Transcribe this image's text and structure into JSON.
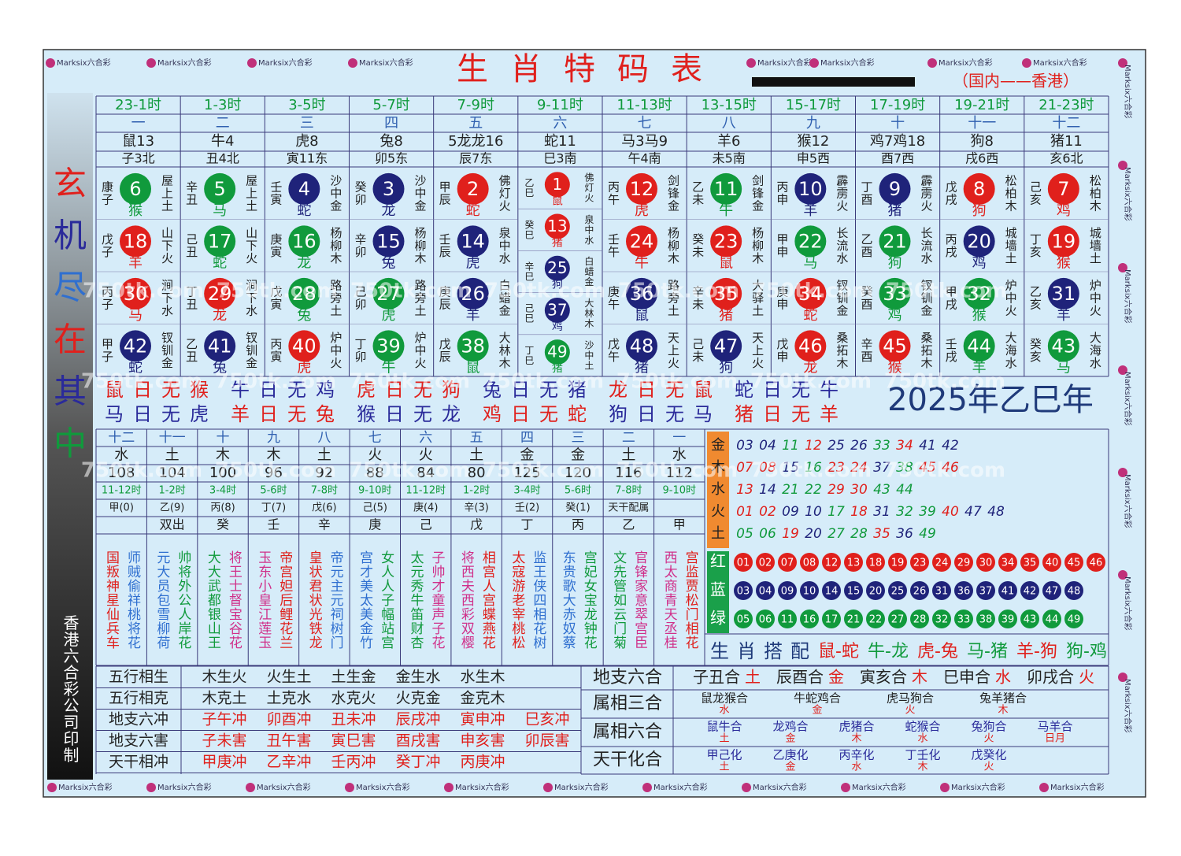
{
  "watermark": "Marksix六合彩",
  "watermark_site": "750tk.com",
  "title": "生肖特码表",
  "subtitle": "（国内——香港）",
  "side_title": [
    "玄",
    "机",
    "尽",
    "在",
    "其",
    "中"
  ],
  "side_note": "香港六合彩公司印制",
  "top_table": {
    "hours": [
      "23-1时",
      "1-3时",
      "3-5时",
      "5-7时",
      "7-9时",
      "9-11时",
      "11-13时",
      "13-15时",
      "15-17时",
      "17-19时",
      "19-21时",
      "21-23时"
    ],
    "numbers": [
      "一",
      "二",
      "三",
      "四",
      "五",
      "六",
      "七",
      "八",
      "九",
      "十",
      "十一",
      "十二"
    ],
    "zodiac": [
      "鼠13",
      "牛4",
      "虎8",
      "兔8",
      "5龙龙16",
      "蛇11",
      "马3马9",
      "羊6",
      "猴12",
      "鸡7鸡18",
      "狗8",
      "猪11"
    ],
    "branches": [
      "子3北",
      "丑4北",
      "寅11东",
      "卯5东",
      "辰7东",
      "巳3南",
      "午4南",
      "未5南",
      "申5西",
      "酉7西",
      "戌6西",
      "亥6北"
    ]
  },
  "balls": [
    [
      {
        "gz": "康子",
        "num": 6,
        "animal": "猴",
        "nayin": "屋上土"
      },
      {
        "gz": "戊子",
        "num": 18,
        "animal": "羊",
        "nayin": "山下火"
      },
      {
        "gz": "丙子",
        "num": 30,
        "animal": "马",
        "nayin": "涧下水"
      },
      {
        "gz": "甲子",
        "num": 42,
        "animal": "蛇",
        "nayin": "钗钏金"
      }
    ],
    [
      {
        "gz": "辛丑",
        "num": 5,
        "animal": "马",
        "nayin": "屋上土"
      },
      {
        "gz": "己丑",
        "num": 17,
        "animal": "蛇",
        "nayin": "山下火"
      },
      {
        "gz": "丁丑",
        "num": 29,
        "animal": "龙",
        "nayin": "涧下水"
      },
      {
        "gz": "乙丑",
        "num": 41,
        "animal": "兔",
        "nayin": "钗钏金"
      }
    ],
    [
      {
        "gz": "壬寅",
        "num": 4,
        "animal": "蛇",
        "nayin": "沙中金"
      },
      {
        "gz": "庚寅",
        "num": 16,
        "animal": "龙",
        "nayin": "杨柳木"
      },
      {
        "gz": "戊寅",
        "num": 28,
        "animal": "兔",
        "nayin": "路旁土"
      },
      {
        "gz": "丙寅",
        "num": 40,
        "animal": "虎",
        "nayin": "炉中火"
      }
    ],
    [
      {
        "gz": "癸卯",
        "num": 3,
        "animal": "龙",
        "nayin": "沙中金"
      },
      {
        "gz": "辛卯",
        "num": 15,
        "animal": "兔",
        "nayin": "杨柳木"
      },
      {
        "gz": "己卯",
        "num": 27,
        "animal": "虎",
        "nayin": "路旁土"
      },
      {
        "gz": "丁卯",
        "num": 39,
        "animal": "牛",
        "nayin": "炉中火"
      }
    ],
    [
      {
        "gz": "甲辰",
        "num": 2,
        "animal": "蛇",
        "nayin": "佛灯火"
      },
      {
        "gz": "壬辰",
        "num": 14,
        "animal": "虎",
        "nayin": "泉中水"
      },
      {
        "gz": "庚辰",
        "num": 26,
        "animal": "羊",
        "nayin": "白蜡金"
      },
      {
        "gz": "戊辰",
        "num": 38,
        "animal": "鼠",
        "nayin": "大林木"
      }
    ],
    [
      {
        "gz": "乙巳",
        "num": 1,
        "animal": "鼠",
        "nayin": "佛灯火"
      },
      {
        "gz": "癸巳",
        "num": 13,
        "animal": "猪",
        "nayin": "泉中水"
      },
      {
        "gz": "辛巳",
        "num": 25,
        "animal": "狗",
        "nayin": "白蜡金"
      },
      {
        "gz": "己巳",
        "num": 37,
        "animal": "鸡",
        "nayin": "大林木"
      },
      {
        "gz": "丁巳",
        "num": 49,
        "animal": "猪",
        "nayin": "沙中土"
      }
    ],
    [
      {
        "gz": "丙午",
        "num": 12,
        "animal": "虎",
        "nayin": "剑锋金"
      },
      {
        "gz": "壬午",
        "num": 24,
        "animal": "牛",
        "nayin": "杨柳木"
      },
      {
        "gz": "庚午",
        "num": 36,
        "animal": "鼠",
        "nayin": "路旁土"
      },
      {
        "gz": "戊午",
        "num": 48,
        "animal": "猪",
        "nayin": "天上火"
      }
    ],
    [
      {
        "gz": "乙未",
        "num": 11,
        "animal": "牛",
        "nayin": "剑锋金"
      },
      {
        "gz": "癸未",
        "num": 23,
        "animal": "鼠",
        "nayin": "杨柳木"
      },
      {
        "gz": "辛未",
        "num": 35,
        "animal": "猪",
        "nayin": "大驿土"
      },
      {
        "gz": "己未",
        "num": 47,
        "animal": "狗",
        "nayin": "天上火"
      }
    ],
    [
      {
        "gz": "丙申",
        "num": 10,
        "animal": "羊",
        "nayin": "霹雳火"
      },
      {
        "gz": "甲申",
        "num": 22,
        "animal": "马",
        "nayin": "长流水"
      },
      {
        "gz": "庚申",
        "num": 34,
        "animal": "蛇",
        "nayin": "钗钏金"
      },
      {
        "gz": "戊申",
        "num": 46,
        "animal": "龙",
        "nayin": "桑拓木"
      }
    ],
    [
      {
        "gz": "丁酉",
        "num": 9,
        "animal": "猪",
        "nayin": "霹雳火"
      },
      {
        "gz": "乙酉",
        "num": 21,
        "animal": "狗",
        "nayin": "长流水"
      },
      {
        "gz": "癸酉",
        "num": 33,
        "animal": "鸡",
        "nayin": "钗钏金"
      },
      {
        "gz": "辛酉",
        "num": 45,
        "animal": "猴",
        "nayin": "桑拓木"
      }
    ],
    [
      {
        "gz": "戊戌",
        "num": 8,
        "animal": "狗",
        "nayin": "松柏木"
      },
      {
        "gz": "丙戌",
        "num": 20,
        "animal": "鸡",
        "nayin": "城墙土"
      },
      {
        "gz": "甲戌",
        "num": 32,
        "animal": "猴",
        "nayin": "炉中火"
      },
      {
        "gz": "壬戌",
        "num": 44,
        "animal": "羊",
        "nayin": "大海水"
      }
    ],
    [
      {
        "gz": "己亥",
        "num": 7,
        "animal": "鸡",
        "nayin": "松柏木"
      },
      {
        "gz": "丁亥",
        "num": 19,
        "animal": "猴",
        "nayin": "城墙土"
      },
      {
        "gz": "乙亥",
        "num": 31,
        "animal": "羊",
        "nayin": "炉中火"
      },
      {
        "gz": "癸亥",
        "num": 43,
        "animal": "马",
        "nayin": "大海水"
      }
    ]
  ],
  "no_days": [
    [
      "鼠日无猴",
      "牛日无鸡",
      "虎日无狗",
      "兔日无猪",
      "龙日无鼠",
      "蛇日无牛"
    ],
    [
      "马日无虎",
      "羊日无兔",
      "猴日无龙",
      "鸡日无蛇",
      "狗日无马",
      "猪日无羊"
    ]
  ],
  "year": "2025年乙巳年",
  "lower_table": {
    "numbers": [
      "十二",
      "十一",
      "十",
      "九",
      "八",
      "七",
      "六",
      "五",
      "四",
      "三",
      "二",
      "一"
    ],
    "elements": [
      "水",
      "土",
      "木",
      "木",
      "土",
      "火",
      "火",
      "土",
      "金",
      "金",
      "土",
      "水"
    ],
    "values": [
      108,
      104,
      100,
      96,
      92,
      88,
      84,
      80,
      125,
      120,
      116,
      112
    ],
    "hours": [
      "11-12时",
      "1-2时",
      "3-4时",
      "5-6时",
      "7-8时",
      "9-10时",
      "11-12时",
      "1-2时",
      "3-4时",
      "5-6时",
      "7-8时",
      "9-10时"
    ],
    "stems": [
      "甲(0)",
      "乙(9)",
      "丙(8)",
      "丁(7)",
      "戊(6)",
      "己(5)",
      "庚(4)",
      "辛(3)",
      "壬(2)",
      "癸(1)",
      "天干配属"
    ],
    "row": [
      "双出",
      "癸",
      "壬",
      "辛",
      "庚",
      "己",
      "戊",
      "丁",
      "丙",
      "乙",
      "甲"
    ],
    "poems": [
      [
        "国叛神星仙兵车",
        "师贼偷祥桃将花"
      ],
      [
        "元大员包雪柳荷",
        "帅将外公人岸花"
      ],
      [
        "大大武都银山王",
        "将王士督宝谷花"
      ],
      [
        "玉东小皇江莲玉",
        "帝宫妲后鲤花兰"
      ],
      [
        "皇状君状光铁龙",
        "帝元主元祠树门"
      ],
      [
        "宫才美太美金竹",
        "女人人子幅站宫"
      ],
      [
        "太元秀牛笛财杏",
        "子帅才童声子花"
      ],
      [
        "将西夫西彩双樱",
        "相宫人宫蝶燕花"
      ],
      [
        "太寇游老宰桃松",
        "监王侠四相花树"
      ],
      [
        "东贵歌大赤奴蔡",
        "宫妃女宝龙钟花"
      ],
      [
        "文先管如云门菊",
        "官锋家意翠宫臣"
      ],
      [
        "西太商青天丞桂",
        "宫监贾松门相花"
      ]
    ]
  },
  "element_numbers": [
    {
      "label": "金",
      "numbers": [
        "03",
        "04",
        "11",
        "12",
        "25",
        "26",
        "33",
        "34",
        "41",
        "42"
      ]
    },
    {
      "label": "木",
      "numbers": [
        "07",
        "08",
        "15",
        "16",
        "23",
        "24",
        "37",
        "38",
        "45",
        "46"
      ]
    },
    {
      "label": "水",
      "numbers": [
        "13",
        "14",
        "21",
        "22",
        "29",
        "30",
        "43",
        "44"
      ]
    },
    {
      "label": "火",
      "numbers": [
        "01",
        "02",
        "09",
        "10",
        "17",
        "18",
        "31",
        "32",
        "39",
        "40",
        "47",
        "48"
      ]
    },
    {
      "label": "土",
      "numbers": [
        "05",
        "06",
        "19",
        "20",
        "27",
        "28",
        "35",
        "36",
        "49"
      ]
    }
  ],
  "waves": [
    {
      "label": "红",
      "color": "#e0201c",
      "numbers": [
        "01",
        "02",
        "07",
        "08",
        "12",
        "13",
        "18",
        "19",
        "23",
        "24",
        "29",
        "30",
        "34",
        "35",
        "40",
        "45",
        "46"
      ]
    },
    {
      "label": "蓝",
      "color": "#1f237a",
      "numbers": [
        "03",
        "04",
        "09",
        "10",
        "14",
        "15",
        "20",
        "25",
        "26",
        "31",
        "36",
        "37",
        "41",
        "42",
        "47",
        "48"
      ]
    },
    {
      "label": "绿",
      "color": "#109a3c",
      "numbers": [
        "05",
        "06",
        "11",
        "16",
        "17",
        "21",
        "22",
        "27",
        "28",
        "32",
        "33",
        "38",
        "39",
        "43",
        "44",
        "49"
      ]
    }
  ],
  "pairs": {
    "label": "生肖搭配",
    "items": [
      "鼠-蛇",
      "牛-龙",
      "虎-兔",
      "马-猪",
      "羊-狗",
      "狗-鸡"
    ]
  },
  "relations": [
    {
      "label": "五行相生",
      "items": [
        "木生火",
        "火生土",
        "土生金",
        "金生水",
        "水生木"
      ]
    },
    {
      "label": "五行相克",
      "items": [
        "木克土",
        "土克水",
        "水克火",
        "火克金",
        "金克木"
      ]
    },
    {
      "label": "地支六冲",
      "items": [
        "子午冲",
        "卯酉冲",
        "丑未冲",
        "辰戌冲",
        "寅申冲",
        "巳亥冲"
      ]
    },
    {
      "label": "地支六害",
      "items": [
        "子未害",
        "丑午害",
        "寅巳害",
        "酉戌害",
        "申亥害",
        "卯辰害"
      ]
    },
    {
      "label": "天干相冲",
      "items": [
        "甲庚冲",
        "乙辛冲",
        "壬丙冲",
        "癸丁冲",
        "丙庚冲"
      ]
    }
  ],
  "combos": [
    {
      "label": "地支六合",
      "items": [
        {
          "name": "子丑合",
          "element": "土"
        },
        {
          "name": "辰酉合",
          "element": "金"
        },
        {
          "name": "寅亥合",
          "element": "木"
        },
        {
          "name": "巳申合",
          "element": "水"
        },
        {
          "name": "卯戌合",
          "element": "火"
        }
      ]
    },
    {
      "label": "属相三合",
      "items": [
        {
          "name": "鼠龙猴合",
          "element": "水"
        },
        {
          "name": "牛蛇鸡合",
          "element": "金"
        },
        {
          "name": "虎马狗合",
          "element": "火"
        },
        {
          "name": "兔羊猪合",
          "element": "木"
        }
      ]
    },
    {
      "label": "属相六合",
      "items": [
        {
          "name": "鼠牛合",
          "element": "土"
        },
        {
          "name": "龙鸡合",
          "element": "金"
        },
        {
          "name": "虎猪合",
          "element": "木"
        },
        {
          "name": "蛇猴合",
          "element": "水"
        },
        {
          "name": "兔狗合",
          "element": "火"
        },
        {
          "name": "马羊合",
          "element": "日月"
        }
      ]
    },
    {
      "label": "天干化合",
      "items": [
        {
          "name": "甲己化",
          "element": "土"
        },
        {
          "name": "乙庚化",
          "element": "金"
        },
        {
          "name": "丙辛化",
          "element": "水"
        },
        {
          "name": "丁壬化",
          "element": "木"
        },
        {
          "name": "戊癸化",
          "element": "火"
        }
      ]
    }
  ]
}
